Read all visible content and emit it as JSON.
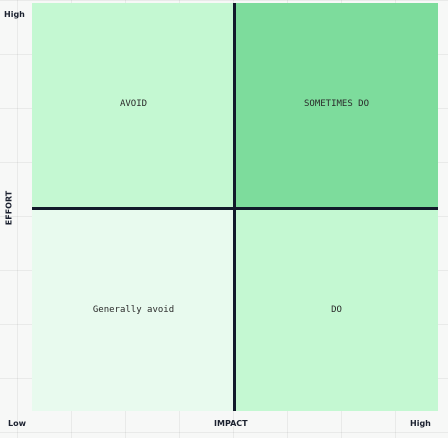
{
  "heading_fragment": "",
  "axes": {
    "y_high": "High",
    "y_title": "EFFORT",
    "x_low": "Low",
    "x_title": "IMPACT",
    "x_high": "High"
  },
  "quadrants": {
    "top_left": {
      "label": "AVOID",
      "color": "#c4f8d2"
    },
    "top_right": {
      "label": "SOMETIMES DO",
      "color": "#7ddc9c"
    },
    "bottom_left": {
      "label": "Generally avoid",
      "color": "#e8faee"
    },
    "bottom_right": {
      "label": "DO",
      "color": "#c4f8d2"
    }
  },
  "axis_line_color": "#111a2a"
}
